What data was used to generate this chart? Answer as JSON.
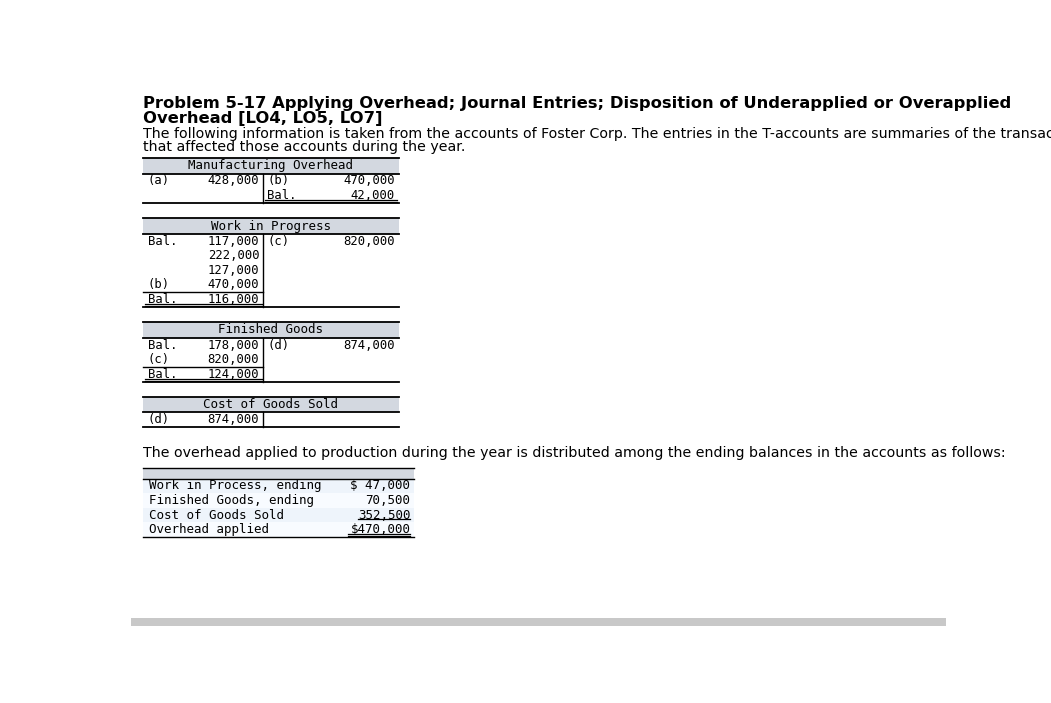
{
  "title_line1": "Problem 5-17 Applying Overhead; Journal Entries; Disposition of Underapplied or Overapplied",
  "title_line2": "Overhead [LO4, LO5, LO7]",
  "intro_line1": "The following information is taken from the accounts of Foster Corp. The entries in the T-accounts are summaries of the transactions",
  "intro_line2": "that affected those accounts during the year.",
  "bg_color": "#ffffff",
  "header_bg": "#d3d8e0",
  "row_bg": "#ffffff",
  "mono_font": "DejaVu Sans Mono",
  "sans_font": "DejaVu Sans",
  "overhead_text": "The overhead applied to production during the year is distributed among the ending balances in the accounts as follows:",
  "summary_rows": [
    [
      "Work in Process, ending",
      "$ 47,000"
    ],
    [
      "Finished Goods, ending",
      "70,500"
    ],
    [
      "Cost of Goods Sold",
      "352,500"
    ],
    [
      "Overhead applied",
      "$470,000"
    ]
  ]
}
